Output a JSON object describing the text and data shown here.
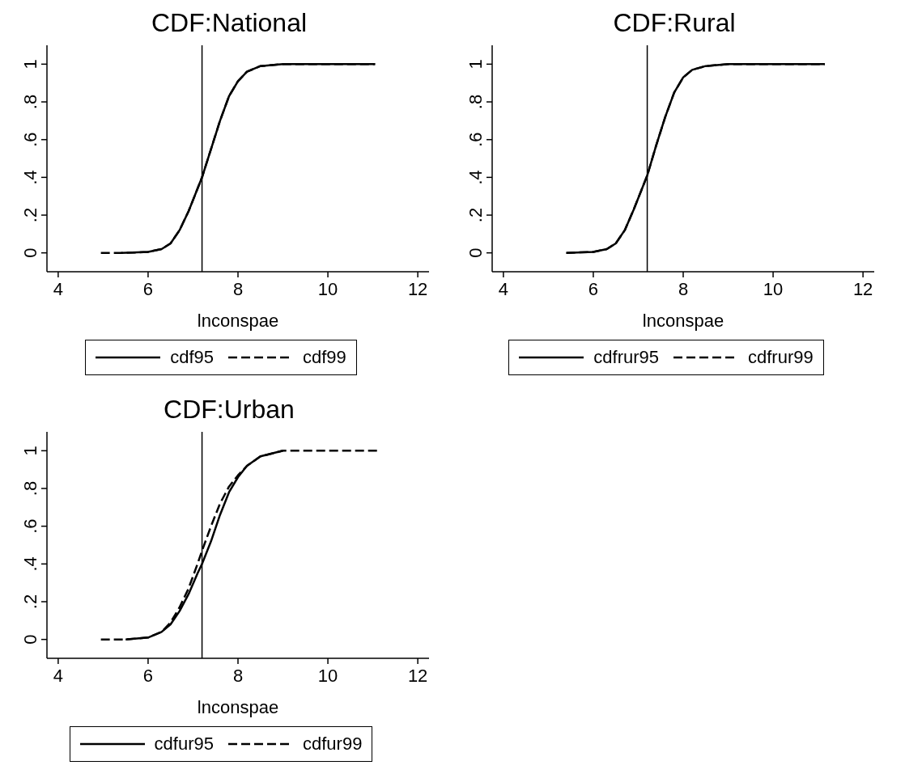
{
  "chart_data": [
    {
      "type": "line",
      "title": "CDF:National",
      "xlabel": "lnconspae",
      "xlim": [
        3.75,
        12.25
      ],
      "xticks": [
        4,
        6,
        8,
        10,
        12
      ],
      "ylim": [
        -0.1,
        1.1
      ],
      "yticks": [
        {
          "value": 0,
          "label": "0"
        },
        {
          "value": 0.2,
          "label": ".2"
        },
        {
          "value": 0.4,
          "label": ".4"
        },
        {
          "value": 0.6,
          "label": ".6"
        },
        {
          "value": 0.8,
          "label": ".8"
        },
        {
          "value": 1,
          "label": "1"
        }
      ],
      "legend": "bottom",
      "marker": "none",
      "ref_lines": [
        {
          "axis": "x",
          "value": 7.2,
          "color": "#000000"
        }
      ],
      "series": [
        {
          "name": "cdf95",
          "color": "#000000",
          "line_style": "solid",
          "x": [
            5.4,
            6.0,
            6.3,
            6.5,
            6.7,
            6.9,
            7.1,
            7.2,
            7.4,
            7.6,
            7.8,
            8.0,
            8.2,
            8.5,
            9.0,
            10,
            11.05
          ],
          "values": [
            0,
            0.005,
            0.02,
            0.05,
            0.12,
            0.22,
            0.34,
            0.4,
            0.55,
            0.7,
            0.83,
            0.91,
            0.96,
            0.99,
            1,
            1,
            1
          ]
        },
        {
          "name": "cdf99",
          "color": "#000000",
          "line_style": "dashed",
          "x": [
            4.95,
            5.5,
            6.0,
            6.3,
            6.5,
            6.7,
            6.9,
            7.1,
            7.2,
            7.4,
            7.6,
            7.8,
            8.0,
            8.2,
            8.5,
            9.0,
            10,
            11.05
          ],
          "values": [
            0,
            0,
            0.005,
            0.02,
            0.05,
            0.12,
            0.22,
            0.34,
            0.4,
            0.55,
            0.7,
            0.83,
            0.91,
            0.96,
            0.99,
            1,
            1,
            1
          ]
        }
      ]
    },
    {
      "type": "line",
      "title": "CDF:Rural",
      "xlabel": "lnconspae",
      "xlim": [
        3.75,
        12.25
      ],
      "xticks": [
        4,
        6,
        8,
        10,
        12
      ],
      "ylim": [
        -0.1,
        1.1
      ],
      "yticks": [
        {
          "value": 0,
          "label": "0"
        },
        {
          "value": 0.2,
          "label": ".2"
        },
        {
          "value": 0.4,
          "label": ".4"
        },
        {
          "value": 0.6,
          "label": ".6"
        },
        {
          "value": 0.8,
          "label": ".8"
        },
        {
          "value": 1,
          "label": "1"
        }
      ],
      "legend": "bottom",
      "marker": "none",
      "ref_lines": [
        {
          "axis": "x",
          "value": 7.2,
          "color": "#000000"
        }
      ],
      "series": [
        {
          "name": "cdfrur95",
          "color": "#000000",
          "line_style": "solid",
          "x": [
            5.4,
            6.0,
            6.3,
            6.5,
            6.7,
            6.9,
            7.1,
            7.2,
            7.4,
            7.6,
            7.8,
            8.0,
            8.2,
            8.5,
            9.0,
            10,
            11.15
          ],
          "values": [
            0,
            0.005,
            0.02,
            0.05,
            0.12,
            0.23,
            0.35,
            0.41,
            0.57,
            0.72,
            0.85,
            0.93,
            0.97,
            0.99,
            1,
            1,
            1
          ]
        },
        {
          "name": "cdfrur99",
          "color": "#000000",
          "line_style": "dashed",
          "x": [
            5.4,
            6.0,
            6.3,
            6.5,
            6.7,
            6.9,
            7.1,
            7.2,
            7.4,
            7.6,
            7.8,
            8.0,
            8.2,
            8.5,
            9.0,
            10,
            11.15
          ],
          "values": [
            0,
            0.005,
            0.02,
            0.05,
            0.12,
            0.23,
            0.35,
            0.41,
            0.57,
            0.72,
            0.85,
            0.93,
            0.97,
            0.99,
            1,
            1,
            1
          ]
        }
      ]
    },
    {
      "type": "line",
      "title": "CDF:Urban",
      "xlabel": "lnconspae",
      "xlim": [
        3.75,
        12.25
      ],
      "xticks": [
        4,
        6,
        8,
        10,
        12
      ],
      "ylim": [
        -0.1,
        1.1
      ],
      "yticks": [
        {
          "value": 0,
          "label": "0"
        },
        {
          "value": 0.2,
          "label": ".2"
        },
        {
          "value": 0.4,
          "label": ".4"
        },
        {
          "value": 0.6,
          "label": ".6"
        },
        {
          "value": 0.8,
          "label": ".8"
        },
        {
          "value": 1,
          "label": "1"
        }
      ],
      "legend": "bottom",
      "marker": "none",
      "ref_lines": [
        {
          "axis": "x",
          "value": 7.2,
          "color": "#000000"
        }
      ],
      "series": [
        {
          "name": "cdfur95",
          "color": "#000000",
          "line_style": "solid",
          "x": [
            5.5,
            6.0,
            6.3,
            6.5,
            6.7,
            6.9,
            7.1,
            7.2,
            7.4,
            7.6,
            7.8,
            8.0,
            8.2,
            8.5,
            9.0
          ],
          "values": [
            0,
            0.01,
            0.04,
            0.08,
            0.15,
            0.24,
            0.35,
            0.4,
            0.52,
            0.66,
            0.78,
            0.86,
            0.92,
            0.97,
            1
          ]
        },
        {
          "name": "cdfur99",
          "color": "#000000",
          "line_style": "dashed",
          "x": [
            4.95,
            5.5,
            6.0,
            6.3,
            6.5,
            6.7,
            6.9,
            7.1,
            7.2,
            7.4,
            7.6,
            7.8,
            8.0,
            8.2,
            8.5,
            9.0,
            10,
            11.1
          ],
          "values": [
            0,
            0,
            0.01,
            0.04,
            0.09,
            0.17,
            0.27,
            0.4,
            0.47,
            0.6,
            0.72,
            0.81,
            0.87,
            0.92,
            0.97,
            1,
            1,
            1
          ]
        }
      ]
    }
  ]
}
